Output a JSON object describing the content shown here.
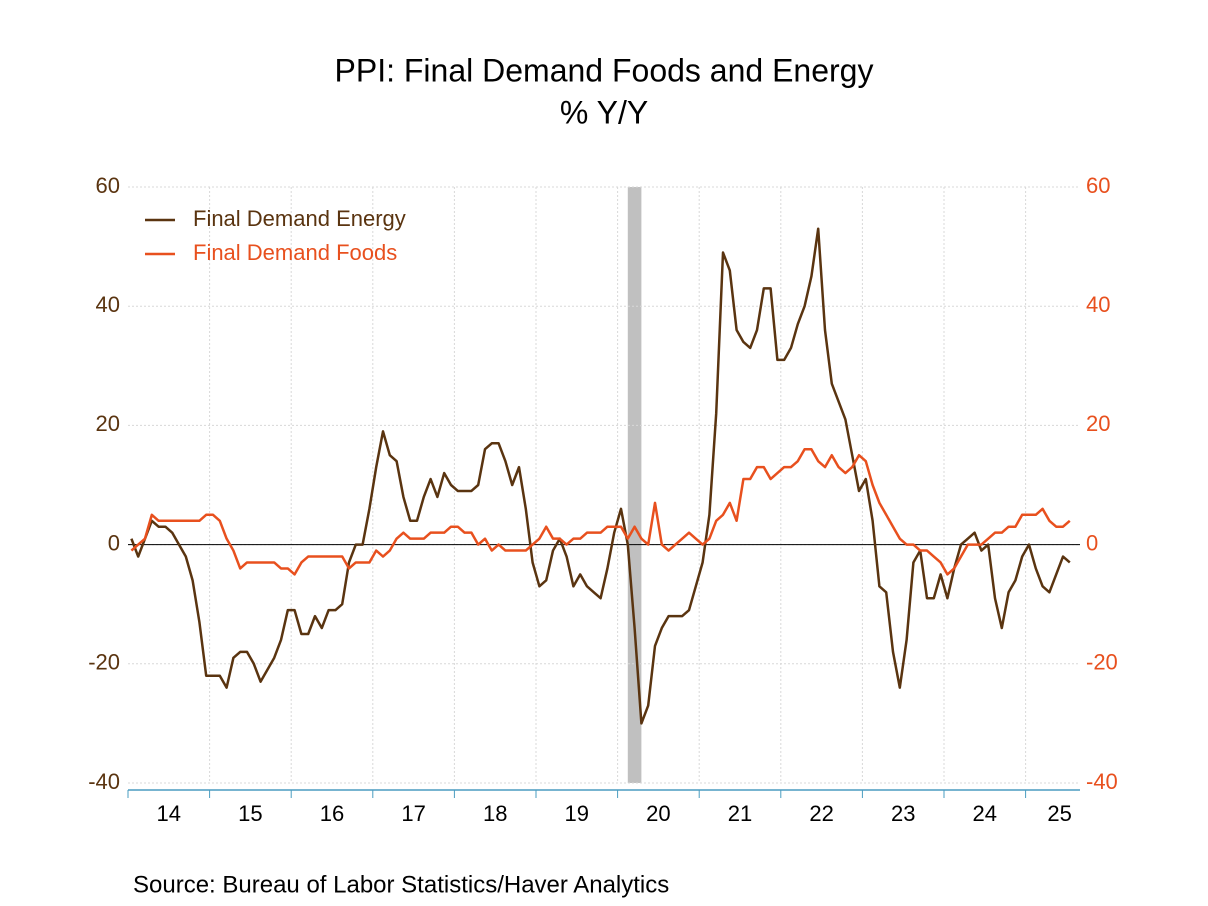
{
  "chart_data": {
    "type": "line",
    "title": "PPI: Final Demand Foods and Energy",
    "subtitle": "% Y/Y",
    "source": "Source:  Bureau of Labor Statistics/Haver Analytics",
    "categories": [
      null,
      null,
      null,
      null,
      null,
      null,
      "14",
      null,
      null,
      null,
      null,
      null,
      null,
      null,
      null,
      null,
      null,
      null,
      "15",
      null,
      null,
      null,
      null,
      null,
      null,
      null,
      null,
      null,
      null,
      null,
      "16",
      null,
      null,
      null,
      null,
      null,
      null,
      null,
      null,
      null,
      null,
      null,
      "17",
      null,
      null,
      null,
      null,
      null,
      null,
      null,
      null,
      null,
      null,
      null,
      "18",
      null,
      null,
      null,
      null,
      null,
      null,
      null,
      null,
      null,
      null,
      null,
      "19",
      null,
      null,
      null,
      null,
      null,
      null,
      null,
      null,
      null,
      null,
      null,
      "20",
      null,
      null,
      null,
      null,
      null,
      null,
      null,
      null,
      null,
      null,
      null,
      "21",
      null,
      null,
      null,
      null,
      null,
      null,
      null,
      null,
      null,
      null,
      null,
      "22",
      null,
      null,
      null,
      null,
      null,
      null,
      null,
      null,
      null,
      null,
      null,
      "23",
      null,
      null,
      null,
      null,
      null,
      null,
      null,
      null,
      null,
      null,
      null,
      "24",
      null,
      null,
      null,
      null,
      null,
      null,
      null,
      null,
      null,
      null,
      "25",
      null
    ],
    "shaded": [
      73,
      75
    ],
    "series": [
      {
        "name": "Final Demand Energy",
        "color": "#5a3410",
        "axis": "y",
        "values": [
          1,
          -2,
          1,
          4,
          3,
          3,
          2,
          0,
          -2,
          -6,
          -13,
          -22,
          -22,
          -22,
          -24,
          -19,
          -18,
          -18,
          -20,
          -23,
          -21,
          -19,
          -16,
          -11,
          -11,
          -15,
          -15,
          -12,
          -14,
          -11,
          -11,
          -10,
          -3,
          0,
          0,
          6,
          13,
          19,
          15,
          14,
          8,
          4,
          4,
          8,
          11,
          8,
          12,
          10,
          9,
          9,
          9,
          10,
          16,
          17,
          17,
          14,
          10,
          13,
          6,
          -3,
          -7,
          -6,
          -1,
          1,
          -2,
          -7,
          -5,
          -7,
          -8,
          -9,
          -4,
          2,
          6,
          0,
          -14,
          -30,
          -27,
          -17,
          -14,
          -12,
          -12,
          -12,
          -11,
          -7,
          -3,
          5,
          22,
          49,
          46,
          36,
          34,
          33,
          36,
          43,
          43,
          31,
          31,
          33,
          37,
          40,
          45,
          53,
          36,
          27,
          24,
          21,
          15,
          9,
          11,
          4,
          -7,
          -8,
          -18,
          -24,
          -16,
          -3,
          -1,
          -9,
          -9,
          -5,
          -9,
          -4,
          0,
          1,
          2,
          -1,
          0,
          -9,
          -14,
          -8,
          -6,
          -2,
          0,
          -4,
          -7,
          -8,
          -5,
          -2,
          -3
        ]
      },
      {
        "name": "Final Demand Foods",
        "color": "#e8501e",
        "axis": "y2",
        "values": [
          -1,
          0,
          1,
          5,
          4,
          4,
          4,
          4,
          4,
          4,
          4,
          5,
          5,
          4,
          1,
          -1,
          -4,
          -3,
          -3,
          -3,
          -3,
          -3,
          -4,
          -4,
          -5,
          -3,
          -2,
          -2,
          -2,
          -2,
          -2,
          -2,
          -4,
          -3,
          -3,
          -3,
          -1,
          -2,
          -1,
          1,
          2,
          1,
          1,
          1,
          2,
          2,
          2,
          3,
          3,
          2,
          2,
          0,
          1,
          -1,
          0,
          -1,
          -1,
          -1,
          -1,
          0,
          1,
          3,
          1,
          1,
          0,
          1,
          1,
          2,
          2,
          2,
          3,
          3,
          3,
          1,
          3,
          1,
          0,
          7,
          0,
          -1,
          0,
          1,
          2,
          1,
          0,
          1,
          4,
          5,
          7,
          4,
          11,
          11,
          13,
          13,
          11,
          12,
          13,
          13,
          14,
          16,
          16,
          14,
          13,
          15,
          13,
          12,
          13,
          15,
          14,
          10,
          7,
          5,
          3,
          1,
          0,
          0,
          -1,
          -1,
          -2,
          -3,
          -5,
          -4,
          -2,
          0,
          0,
          0,
          1,
          2,
          2,
          3,
          3,
          5,
          5,
          5,
          6,
          4,
          3,
          3,
          4
        ]
      }
    ],
    "ylim": [
      -40,
      60
    ],
    "yticks": [
      -40,
      -20,
      0,
      20,
      40,
      60
    ],
    "y2lim": [
      -40,
      60
    ],
    "y2ticks": [
      -40,
      -20,
      0,
      20,
      40,
      60
    ],
    "grid": true,
    "legend": "upper left"
  }
}
